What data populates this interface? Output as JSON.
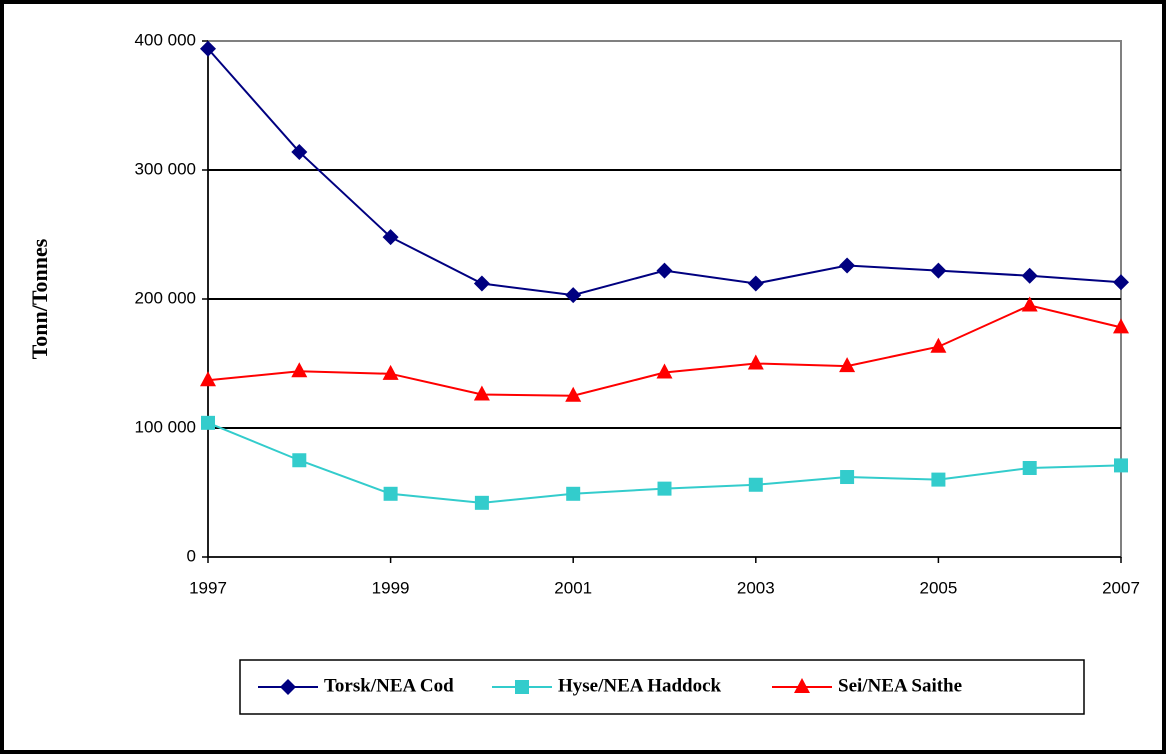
{
  "chart_data": {
    "type": "line",
    "ylabel": "Tonn/Tonnes",
    "x": [
      1997,
      1998,
      1999,
      2000,
      2001,
      2002,
      2003,
      2004,
      2005,
      2006,
      2007
    ],
    "xlim": [
      1997,
      2007
    ],
    "xticks": [
      1997,
      1999,
      2001,
      2003,
      2005,
      2007
    ],
    "ylim": [
      0,
      400000
    ],
    "yticks": [
      0,
      {
        "value": 100000,
        "label": "100 000"
      },
      {
        "value": 200000,
        "label": "200 000"
      },
      {
        "value": 300000,
        "label": "300 000"
      },
      {
        "value": 400000,
        "label": "400 000"
      }
    ],
    "grid": true,
    "legend": "bottom",
    "series": [
      {
        "name": "Torsk/NEA Cod",
        "color": "#000080",
        "marker": "diamond",
        "values": [
          394000,
          314000,
          248000,
          212000,
          203000,
          222000,
          212000,
          226000,
          222000,
          218000,
          213000
        ]
      },
      {
        "name": "Hyse/NEA Haddock",
        "color": "#33CCCC",
        "marker": "square",
        "values": [
          104000,
          75000,
          49000,
          42000,
          49000,
          53000,
          56000,
          62000,
          60000,
          69000,
          71000
        ]
      },
      {
        "name": "Sei/NEA Saithe",
        "color": "#FF0000",
        "marker": "triangle",
        "values": [
          137000,
          144000,
          142000,
          126000,
          125000,
          143000,
          150000,
          148000,
          163000,
          195000,
          178000
        ]
      }
    ]
  }
}
